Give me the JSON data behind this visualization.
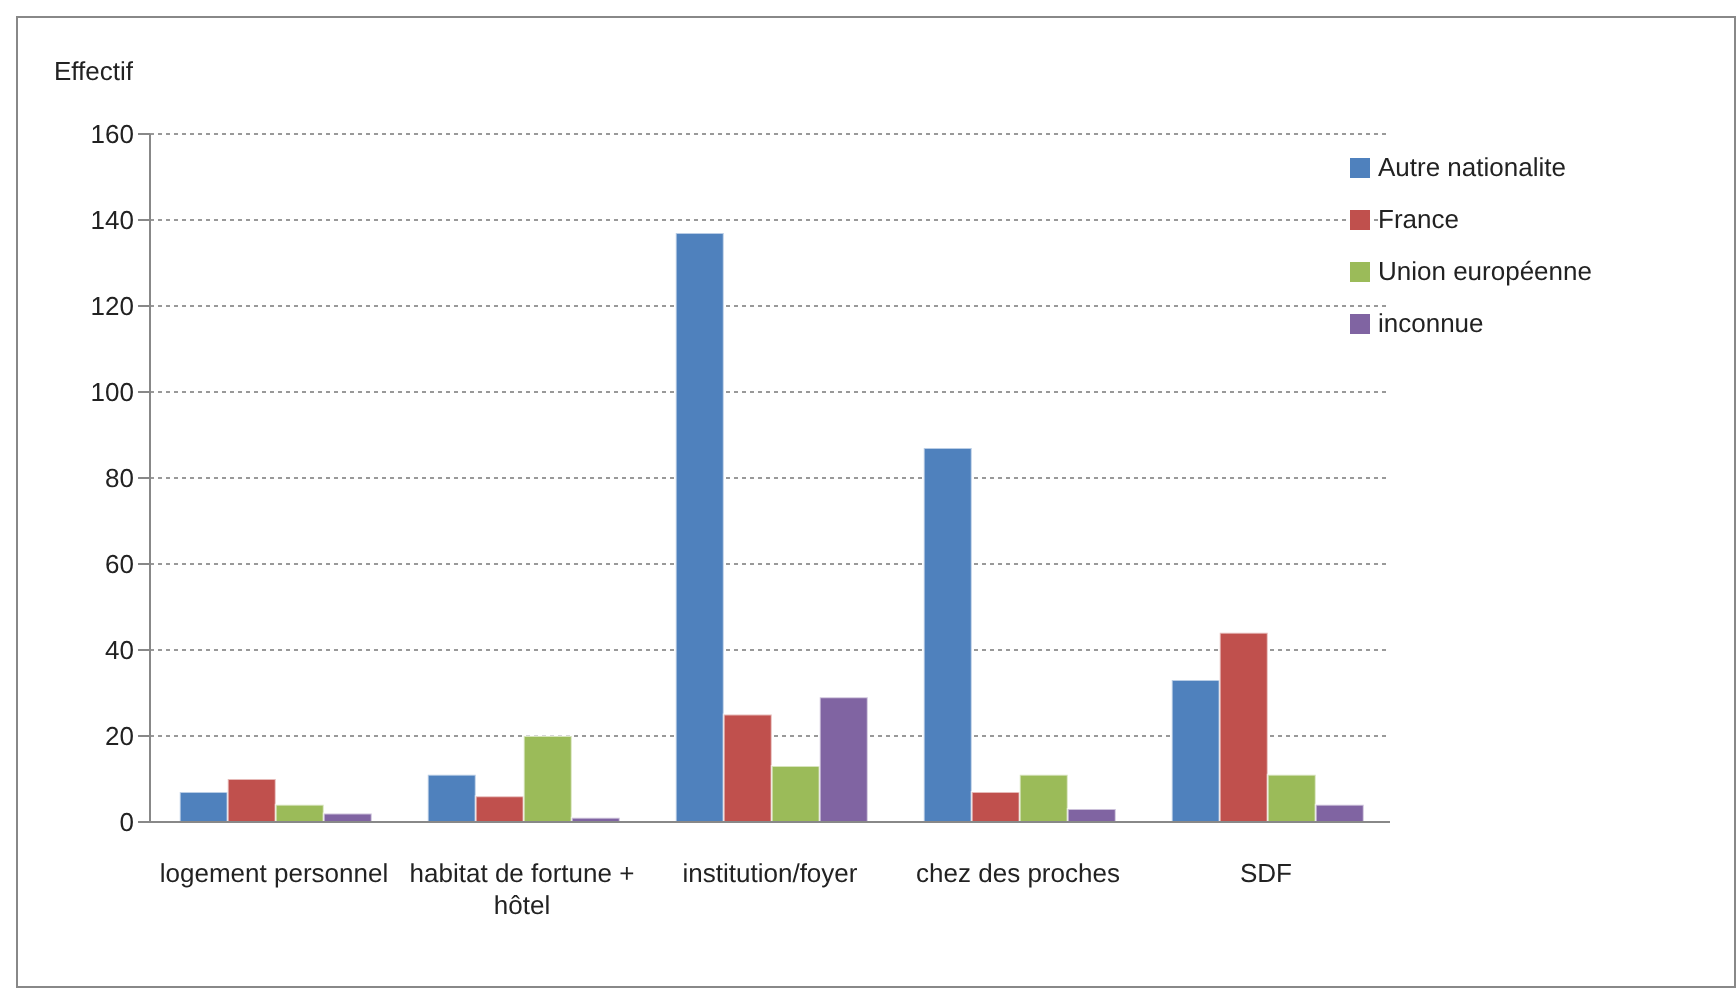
{
  "chart_data": {
    "type": "bar",
    "ylabel": "Effectif",
    "categories": [
      "logement personnel",
      "habitat de fortune + hôtel",
      "institution/foyer",
      "chez des proches",
      "SDF"
    ],
    "series": [
      {
        "name": "Autre nationalite",
        "color": "#4f81bd",
        "values": [
          7,
          11,
          137,
          87,
          33
        ]
      },
      {
        "name": "France",
        "color": "#c0504d",
        "values": [
          10,
          6,
          25,
          7,
          44
        ]
      },
      {
        "name": "Union européenne",
        "color": "#9bbb59",
        "values": [
          4,
          20,
          13,
          11,
          11
        ]
      },
      {
        "name": "inconnue",
        "color": "#8064a2",
        "values": [
          2,
          1,
          29,
          3,
          4
        ]
      }
    ],
    "ylim": [
      0,
      160
    ],
    "yticks": [
      0,
      20,
      40,
      60,
      80,
      100,
      120,
      140,
      160
    ],
    "grid": "y",
    "legend": "top right"
  }
}
